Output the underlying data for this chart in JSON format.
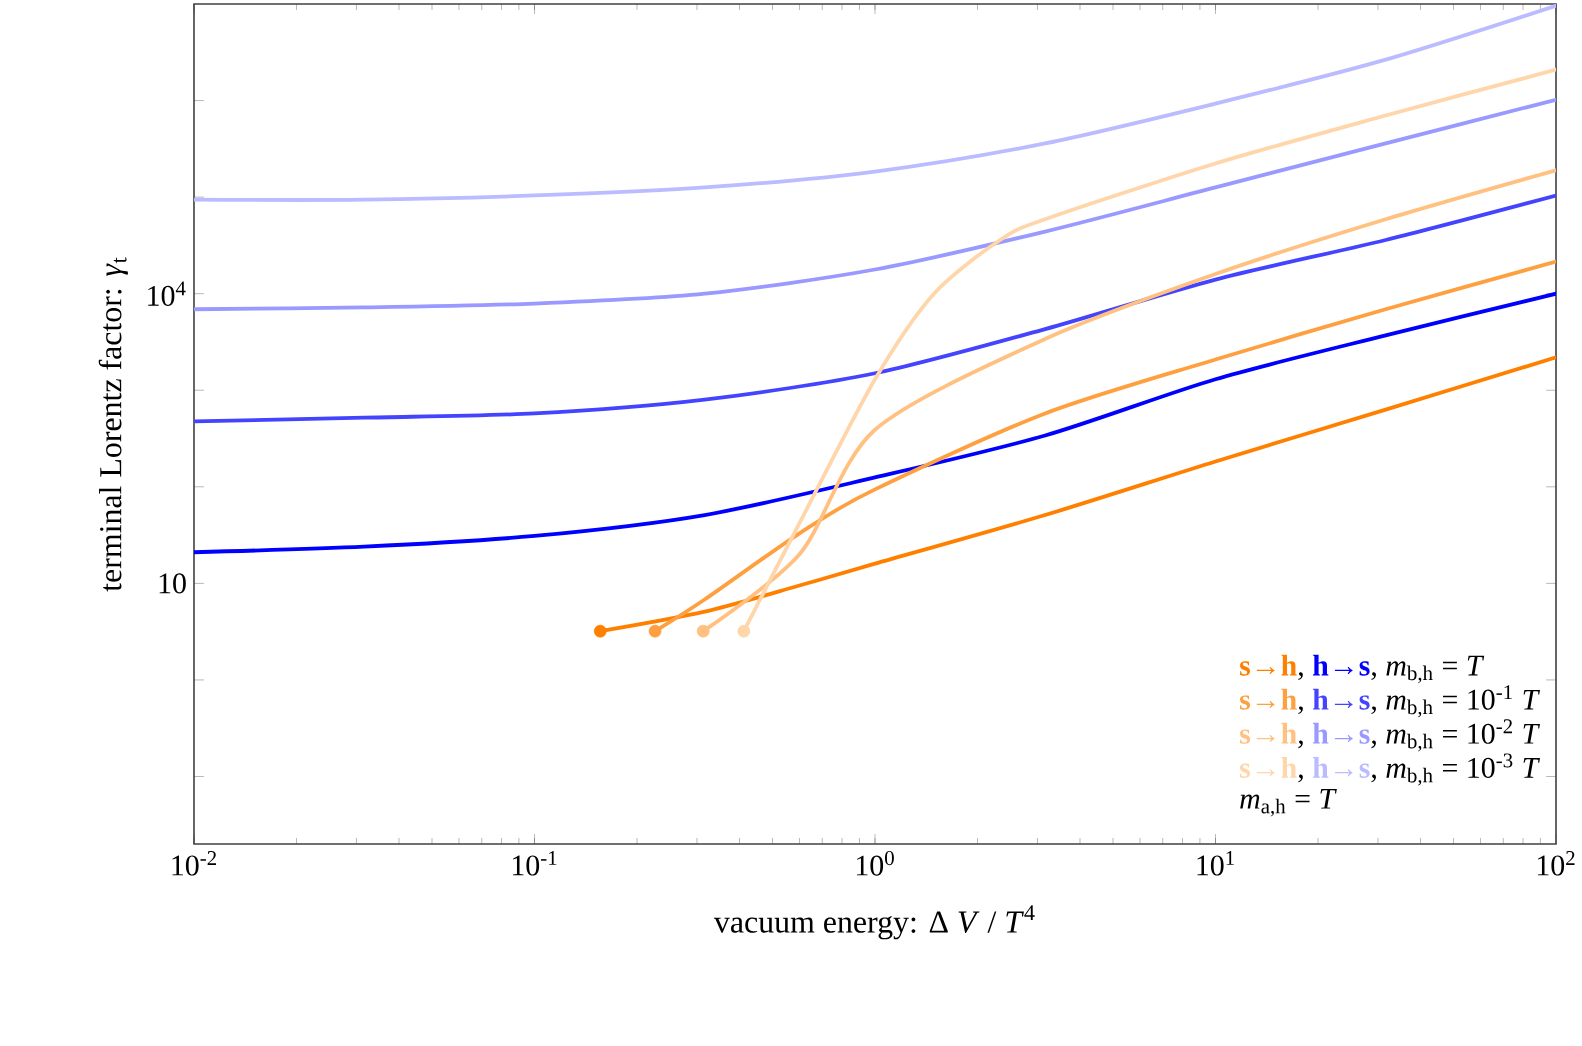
{
  "chart_data": {
    "type": "line",
    "xlabel": "vacuum energy: Δ *V* / *T*$^{4}$",
    "ylabel": "terminal Lorentz factor: *γ*$_{t}$",
    "log": "xy",
    "xlim": [
      0.01,
      100
    ],
    "ylim": [
      0.02,
      10000000
    ],
    "xticks": [
      {
        "value": 0.01,
        "label": "10$^{-2}$"
      },
      {
        "value": 0.1,
        "label": "10$^{-1}$"
      },
      {
        "value": 1,
        "label": "10$^{0}$"
      },
      {
        "value": 10,
        "label": "10$^{1}$"
      },
      {
        "value": 100,
        "label": "10$^{2}$"
      }
    ],
    "yticks": [
      {
        "value": 0.1,
        "label": null
      },
      {
        "value": 1,
        "label": null
      },
      10,
      {
        "value": 100,
        "label": null
      },
      {
        "value": 1000,
        "label": null
      },
      {
        "value": 10000,
        "label": "10$^{4}$"
      },
      {
        "value": 100000,
        "label": null
      },
      {
        "value": 1000000,
        "label": null
      }
    ],
    "grid": false,
    "legend": "bottom right",
    "line_style": "solid",
    "series": [
      {
        "name": "s→h",
        "color": "#ff8000",
        "x": [
          0.156,
          0.316,
          0.6,
          1,
          3.16,
          10,
          31.6,
          100
        ],
        "values": [
          3.2,
          5.1,
          9.5,
          16,
          51,
          183,
          630,
          2190
        ]
      },
      {
        "name": "h→s",
        "color": "#0000ff",
        "x": [
          0.01,
          0.0316,
          0.1,
          0.316,
          1,
          3.16,
          10,
          31.6,
          100
        ],
        "values": [
          21,
          24,
          31,
          51,
          125,
          340,
          1300,
          3700,
          10000
        ]
      },
      {
        "name": "s→h",
        "color": "#ffa040",
        "x": [
          0.226,
          0.316,
          0.6,
          1,
          3.16,
          10,
          31.6,
          100
        ],
        "values": [
          3.2,
          6.8,
          33,
          94,
          575,
          2080,
          6900,
          21500
        ]
      },
      {
        "name": "h→s",
        "color": "#4444ff",
        "x": [
          0.01,
          0.0316,
          0.1,
          0.316,
          1,
          3.16,
          10,
          31.6,
          100
        ],
        "values": [
          475,
          520,
          575,
          800,
          1500,
          4300,
          14000,
          36000,
          104000
        ]
      },
      {
        "name": "s→h",
        "color": "#ffc080",
        "x": [
          0.313,
          0.6,
          1,
          3.16,
          10,
          31.6,
          100
        ],
        "values": [
          3.2,
          20,
          390,
          3400,
          16000,
          59000,
          190000
        ]
      },
      {
        "name": "h→s",
        "color": "#9999ff",
        "x": [
          0.01,
          0.0316,
          0.1,
          0.316,
          1,
          3.16,
          10,
          31.6,
          100
        ],
        "values": [
          6900,
          7200,
          7900,
          10000,
          17800,
          44000,
          126000,
          360000,
          1020000
        ]
      },
      {
        "name": "s→h",
        "color": "#ffd5aa",
        "x": [
          0.412,
          0.6,
          1,
          1.49,
          2.33,
          3.16,
          10,
          31.6,
          100
        ],
        "values": [
          3.2,
          42,
          1300,
          10000,
          36000,
          59000,
          223000,
          700000,
          2090000
        ]
      },
      {
        "name": "h→s",
        "color": "#bbbbff",
        "x": [
          0.01,
          0.0316,
          0.1,
          0.316,
          1,
          3.16,
          10,
          31.6,
          100
        ],
        "values": [
          94000,
          94000,
          104000,
          126000,
          184000,
          360000,
          930000,
          2650000,
          9600000
        ]
      },
      {
        "type": "scatter",
        "marker": "circle",
        "x": [
          0.156,
          0.226,
          0.313,
          0.412
        ],
        "values": [
          3.2,
          3.2,
          3.2,
          3.2
        ],
        "colors": [
          "#ff8000",
          "#ffa040",
          "#ffc080",
          "#ffd5aa"
        ]
      }
    ],
    "annotations": [
      ",",
      ", *m*$_{b,h}$ = *T*",
      ",",
      ", *m*$_{b,h}$ = 10$^{-1}$ *T*",
      ",",
      ", *m*$_{b,h}$ = 10$^{-2}$ *T*",
      ",",
      ", *m*$_{b,h}$ = 10$^{-3}$ *T*",
      "*m*$_{a,h}$ = *T*"
    ]
  }
}
